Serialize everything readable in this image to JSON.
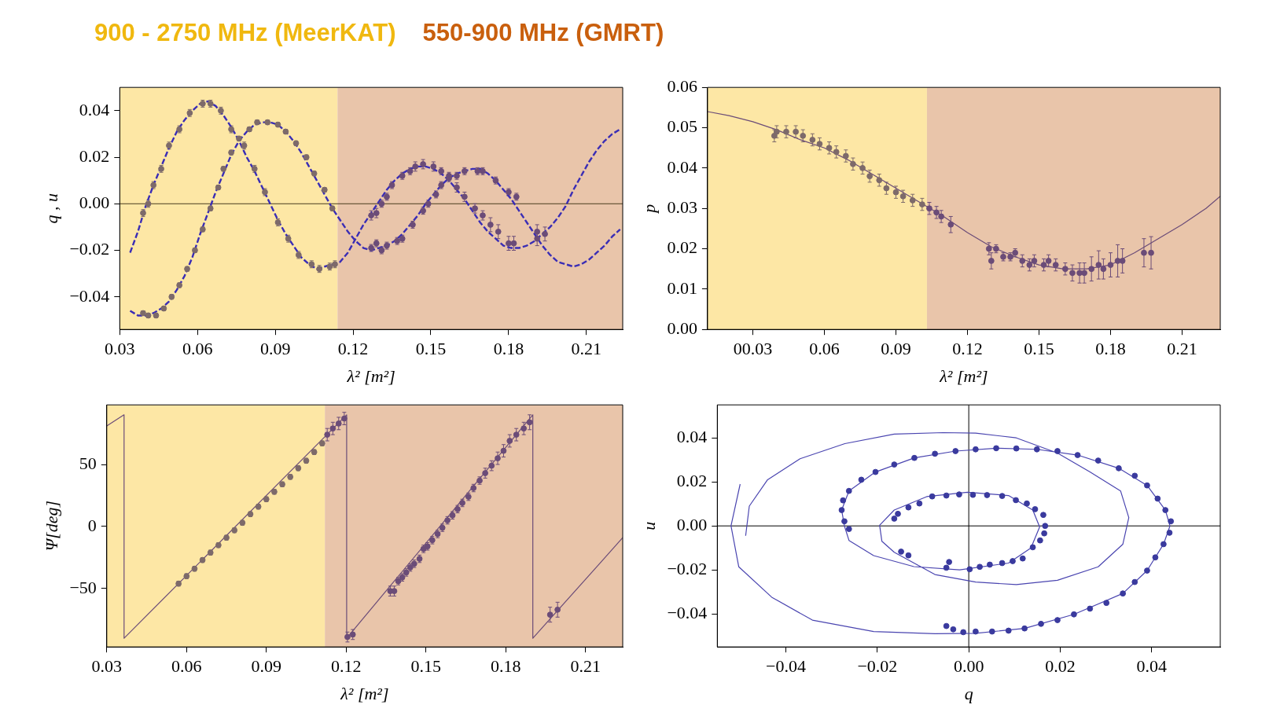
{
  "chart_data": [
    {
      "type": "scatter",
      "xlabel": "λ² [m²]",
      "ylabel": "q , u",
      "marker": "circle",
      "xlim": [
        0.03,
        0.224
      ],
      "ylim": [
        -0.054,
        0.05
      ],
      "xticks": [
        0.03,
        0.06,
        0.09,
        0.12,
        0.15,
        0.18,
        0.21
      ],
      "yticks": [
        {
          "value": -0.04,
          "label": "−0.04"
        },
        {
          "value": -0.02,
          "label": "−0.02"
        },
        {
          "value": 0,
          "label": "0.00"
        },
        {
          "value": 0.02,
          "label": "0.02"
        },
        {
          "value": 0.04,
          "label": "0.04"
        }
      ],
      "bands": [
        {
          "axis": "x",
          "from": 0.03,
          "to": 0.114,
          "label": "900 - 2750 MHz (MeerKAT)",
          "color": "#fde7a5"
        },
        {
          "axis": "x",
          "from": 0.114,
          "to": 0.224,
          "label": "550-900 MHz (GMRT)",
          "color": "#e9c5aa"
        }
      ],
      "ref_lines": [
        {
          "axis": "y",
          "value": 0,
          "color": "#4a3c20"
        }
      ],
      "series": [
        {
          "type": "line",
          "marker": "none",
          "line_style": "dashed",
          "color": "#3a2db5",
          "x": [
            0.034,
            0.037,
            0.04,
            0.043,
            0.046,
            0.049,
            0.052,
            0.055,
            0.058,
            0.061,
            0.064,
            0.067,
            0.07,
            0.073,
            0.076,
            0.079,
            0.082,
            0.085,
            0.088,
            0.091,
            0.094,
            0.097,
            0.1,
            0.103,
            0.106,
            0.109,
            0.112,
            0.115,
            0.118,
            0.121,
            0.124,
            0.127,
            0.13,
            0.133,
            0.136,
            0.139,
            0.142,
            0.145,
            0.148,
            0.151,
            0.154,
            0.157,
            0.16,
            0.163,
            0.166,
            0.169,
            0.172,
            0.175,
            0.178,
            0.181,
            0.184,
            0.187,
            0.19,
            0.193,
            0.196,
            0.199,
            0.202,
            0.205,
            0.208,
            0.211,
            0.214,
            0.217,
            0.22,
            0.223
          ],
          "values": [
            -0.021,
            -0.012,
            -0.001,
            0.008,
            0.016,
            0.024,
            0.031,
            0.036,
            0.04,
            0.043,
            0.044,
            0.042,
            0.038,
            0.033,
            0.027,
            0.02,
            0.014,
            0.007,
            0,
            -0.007,
            -0.013,
            -0.018,
            -0.023,
            -0.026,
            -0.028,
            -0.027,
            -0.026,
            -0.025,
            -0.021,
            -0.015,
            -0.009,
            -0.004,
            0.001,
            0.006,
            0.01,
            0.013,
            0.015,
            0.016,
            0.016,
            0.015,
            0.013,
            0.01,
            0.006,
            0.002,
            -0.003,
            -0.008,
            -0.012,
            -0.015,
            -0.018,
            -0.019,
            -0.019,
            -0.018,
            -0.016,
            -0.013,
            -0.01,
            -0.006,
            -0.001,
            0.006,
            0.012,
            0.018,
            0.023,
            0.027,
            0.03,
            0.032
          ]
        },
        {
          "type": "line",
          "marker": "none",
          "line_style": "dashed",
          "color": "#3a2db5",
          "x": [
            0.034,
            0.037,
            0.04,
            0.043,
            0.046,
            0.049,
            0.052,
            0.055,
            0.058,
            0.061,
            0.064,
            0.067,
            0.07,
            0.073,
            0.076,
            0.079,
            0.082,
            0.085,
            0.088,
            0.091,
            0.094,
            0.097,
            0.1,
            0.103,
            0.106,
            0.109,
            0.112,
            0.115,
            0.118,
            0.121,
            0.124,
            0.127,
            0.13,
            0.133,
            0.136,
            0.139,
            0.142,
            0.145,
            0.148,
            0.151,
            0.154,
            0.157,
            0.16,
            0.163,
            0.166,
            0.169,
            0.172,
            0.175,
            0.178,
            0.181,
            0.184,
            0.187,
            0.19,
            0.193,
            0.196,
            0.199,
            0.202,
            0.205,
            0.208,
            0.211,
            0.214,
            0.217,
            0.22,
            0.223
          ],
          "values": [
            -0.046,
            -0.048,
            -0.048,
            -0.047,
            -0.045,
            -0.042,
            -0.037,
            -0.031,
            -0.023,
            -0.013,
            -0.004,
            0.005,
            0.013,
            0.021,
            0.027,
            0.031,
            0.034,
            0.035,
            0.035,
            0.034,
            0.031,
            0.027,
            0.022,
            0.016,
            0.01,
            0.004,
            -0.002,
            -0.007,
            -0.012,
            -0.016,
            -0.019,
            -0.02,
            -0.019,
            -0.018,
            -0.016,
            -0.013,
            -0.009,
            -0.005,
            0,
            0.004,
            0.008,
            0.011,
            0.013,
            0.014,
            0.015,
            0.015,
            0.013,
            0.01,
            0.006,
            0.002,
            -0.003,
            -0.008,
            -0.013,
            -0.018,
            -0.022,
            -0.025,
            -0.026,
            -0.027,
            -0.026,
            -0.024,
            -0.021,
            -0.018,
            -0.014,
            -0.011
          ]
        },
        {
          "color": "#7d6a6a",
          "x": [
            0.039,
            0.041,
            0.043,
            0.046,
            0.049,
            0.053,
            0.057,
            0.062,
            0.065,
            0.069,
            0.073,
            0.078,
            0.082,
            0.086,
            0.091,
            0.095,
            0.099,
            0.104,
            0.107,
            0.111,
            0.113
          ],
          "values": [
            -0.004,
            0,
            0.008,
            0.015,
            0.025,
            0.032,
            0.039,
            0.043,
            0.043,
            0.04,
            0.032,
            0.025,
            0.015,
            0.005,
            -0.008,
            -0.015,
            -0.022,
            -0.026,
            -0.028,
            -0.027,
            -0.026
          ],
          "errors": [
            0.0015,
            0.0015,
            0.0015,
            0.0015,
            0.0015,
            0.0015,
            0.0015,
            0.0015,
            0.0015,
            0.0015,
            0.0015,
            0.0015,
            0.0015,
            0.0015,
            0.0015,
            0.0015,
            0.0015,
            0.0015,
            0.0015,
            0.0015,
            0.0015
          ]
        },
        {
          "color": "#6b4c78",
          "x": [
            0.127,
            0.129,
            0.131,
            0.133,
            0.135,
            0.139,
            0.142,
            0.144,
            0.147,
            0.151,
            0.154,
            0.157,
            0.16,
            0.163,
            0.167,
            0.17,
            0.173,
            0.176,
            0.18,
            0.182,
            0.191
          ],
          "values": [
            -0.005,
            -0.004,
            0,
            0.003,
            0.008,
            0.012,
            0.014,
            0.016,
            0.017,
            0.016,
            0.014,
            0.012,
            0.007,
            0.003,
            -0.002,
            -0.005,
            -0.009,
            -0.012,
            -0.017,
            -0.017,
            -0.015
          ],
          "errors": [
            0.002,
            0.002,
            0.0015,
            0.0015,
            0.0015,
            0.0015,
            0.0015,
            0.002,
            0.002,
            0.002,
            0.0015,
            0.0015,
            0.002,
            0.002,
            0.002,
            0.002,
            0.003,
            0.003,
            0.003,
            0.003,
            0.003
          ]
        },
        {
          "color": "#7d6a6a",
          "x": [
            0.039,
            0.041,
            0.044,
            0.047,
            0.05,
            0.053,
            0.056,
            0.059,
            0.062,
            0.065,
            0.068,
            0.07,
            0.073,
            0.076,
            0.08,
            0.083,
            0.087,
            0.091,
            0.094,
            0.098,
            0.102,
            0.105,
            0.109,
            0.112
          ],
          "values": [
            -0.047,
            -0.048,
            -0.048,
            -0.045,
            -0.04,
            -0.035,
            -0.028,
            -0.02,
            -0.011,
            -0.002,
            0.007,
            0.015,
            0.022,
            0.028,
            0.032,
            0.035,
            0.035,
            0.034,
            0.031,
            0.026,
            0.02,
            0.013,
            0.006,
            -0.002
          ],
          "errors": [
            0.001,
            0.001,
            0.001,
            0.001,
            0.001,
            0.001,
            0.001,
            0.001,
            0.001,
            0.001,
            0.001,
            0.001,
            0.001,
            0.001,
            0.001,
            0.001,
            0.001,
            0.001,
            0.001,
            0.001,
            0.001,
            0.001,
            0.001,
            0.001
          ]
        },
        {
          "color": "#6b4c78",
          "x": [
            0.127,
            0.129,
            0.131,
            0.133,
            0.137,
            0.139,
            0.143,
            0.147,
            0.149,
            0.152,
            0.154,
            0.157,
            0.16,
            0.163,
            0.168,
            0.17,
            0.175,
            0.18,
            0.183,
            0.191,
            0.194
          ],
          "values": [
            -0.019,
            -0.017,
            -0.02,
            -0.018,
            -0.016,
            -0.015,
            -0.009,
            -0.003,
            0,
            0.004,
            0.008,
            0.011,
            0.012,
            0.014,
            0.014,
            0.014,
            0.01,
            0.005,
            0.003,
            -0.012,
            -0.013
          ],
          "errors": [
            0.0015,
            0.0015,
            0.0015,
            0.0015,
            0.0015,
            0.0015,
            0.0015,
            0.0015,
            0.0015,
            0.0015,
            0.0015,
            0.0015,
            0.0015,
            0.0015,
            0.0015,
            0.0015,
            0.0015,
            0.0015,
            0.0015,
            0.003,
            0.003
          ]
        }
      ]
    },
    {
      "type": "scatter",
      "xlabel": "λ² [m²]",
      "ylabel": "p",
      "marker": "circle",
      "xlim": [
        0.011,
        0.226
      ],
      "ylim": [
        0,
        0.06
      ],
      "xticks": [
        {
          "value": 0.03,
          "label": "00.03"
        },
        0.06,
        0.09,
        0.12,
        0.15,
        0.18,
        0.21
      ],
      "yticks": [
        {
          "value": 0,
          "label": "0.00"
        },
        0.01,
        0.02,
        0.03,
        0.04,
        0.05,
        0.06
      ],
      "bands": [
        {
          "axis": "x",
          "from": 0.011,
          "to": 0.103,
          "color": "#fde7a5"
        },
        {
          "axis": "x",
          "from": 0.103,
          "to": 0.226,
          "color": "#e9c5aa"
        }
      ],
      "series": [
        {
          "type": "line",
          "marker": "none",
          "color": "#6b4c78",
          "x": [
            0.011,
            0.02,
            0.03,
            0.04,
            0.05,
            0.06,
            0.07,
            0.08,
            0.09,
            0.1,
            0.11,
            0.12,
            0.13,
            0.14,
            0.15,
            0.16,
            0.17,
            0.18,
            0.19,
            0.2,
            0.21,
            0.22,
            0.226
          ],
          "values": [
            0.054,
            0.053,
            0.0515,
            0.0495,
            0.047,
            0.045,
            0.042,
            0.0385,
            0.035,
            0.0315,
            0.028,
            0.024,
            0.0205,
            0.018,
            0.016,
            0.015,
            0.015,
            0.016,
            0.019,
            0.0225,
            0.026,
            0.03,
            0.033
          ]
        },
        {
          "color": "#7d6a6a",
          "x": [
            0.039,
            0.04,
            0.044,
            0.048,
            0.051,
            0.055,
            0.058,
            0.062,
            0.065,
            0.069,
            0.072,
            0.076,
            0.079,
            0.083,
            0.086,
            0.09,
            0.093,
            0.097,
            0.101
          ],
          "values": [
            0.048,
            0.049,
            0.049,
            0.049,
            0.048,
            0.047,
            0.046,
            0.045,
            0.044,
            0.043,
            0.041,
            0.04,
            0.038,
            0.037,
            0.035,
            0.034,
            0.033,
            0.032,
            0.031
          ],
          "errors": [
            0.0015,
            0.0015,
            0.0015,
            0.0015,
            0.0015,
            0.0015,
            0.0015,
            0.0015,
            0.0015,
            0.0015,
            0.0015,
            0.0015,
            0.0015,
            0.0015,
            0.0015,
            0.0015,
            0.0015,
            0.0015,
            0.0015
          ]
        },
        {
          "color": "#6b4c78",
          "x": [
            0.104,
            0.107,
            0.109,
            0.113,
            0.129,
            0.13,
            0.132,
            0.135,
            0.138,
            0.14,
            0.143,
            0.146,
            0.148,
            0.152,
            0.154,
            0.157,
            0.161,
            0.164,
            0.167,
            0.169,
            0.172,
            0.175,
            0.177,
            0.18,
            0.183,
            0.185,
            0.194,
            0.197
          ],
          "values": [
            0.03,
            0.029,
            0.028,
            0.026,
            0.02,
            0.017,
            0.02,
            0.018,
            0.018,
            0.019,
            0.017,
            0.016,
            0.017,
            0.016,
            0.017,
            0.016,
            0.015,
            0.014,
            0.014,
            0.014,
            0.015,
            0.016,
            0.015,
            0.016,
            0.017,
            0.017,
            0.019,
            0.019
          ],
          "errors": [
            0.0015,
            0.0015,
            0.0015,
            0.002,
            0.0015,
            0.002,
            0.001,
            0.001,
            0.001,
            0.001,
            0.0015,
            0.0015,
            0.0015,
            0.0015,
            0.0015,
            0.0015,
            0.0015,
            0.002,
            0.0025,
            0.0025,
            0.003,
            0.0035,
            0.0025,
            0.003,
            0.004,
            0.003,
            0.0035,
            0.004
          ]
        }
      ]
    },
    {
      "type": "scatter",
      "xlabel": "λ² [m²]",
      "ylabel": "Ψ[deg]",
      "marker": "circle",
      "xlim": [
        0.03,
        0.224
      ],
      "ylim": [
        -97,
        98
      ],
      "xticks": [
        0.03,
        0.06,
        0.09,
        0.12,
        0.15,
        0.18,
        0.21
      ],
      "yticks": [
        {
          "value": -50,
          "label": "−50"
        },
        0,
        50
      ],
      "bands": [
        {
          "axis": "x",
          "from": 0.03,
          "to": 0.112,
          "color": "#fde7a5"
        },
        {
          "axis": "x",
          "from": 0.112,
          "to": 0.224,
          "color": "#e9c5aa"
        }
      ],
      "series": [
        {
          "type": "line",
          "marker": "none",
          "color": "#6b4c78",
          "x": [
            0.03,
            0.0365,
            0.0365,
            0.1202,
            0.1202,
            0.1902,
            0.1902,
            0.224
          ],
          "values": [
            81,
            90,
            -90,
            90,
            -90,
            90,
            -90,
            -9
          ]
        },
        {
          "color": "#7d6a6a",
          "x": [
            0.057,
            0.06,
            0.063,
            0.066,
            0.069,
            0.072,
            0.075,
            0.078,
            0.081,
            0.084,
            0.087,
            0.09,
            0.093,
            0.096,
            0.099,
            0.102,
            0.105,
            0.108,
            0.111
          ],
          "values": [
            -46,
            -40,
            -34,
            -27,
            -21,
            -15,
            -9,
            -3,
            3,
            10,
            16,
            22,
            28,
            34,
            40,
            47,
            53,
            60,
            67
          ],
          "errors": [
            2,
            2,
            2,
            2,
            2,
            2,
            2,
            2,
            2,
            2,
            2,
            2,
            2,
            2,
            2,
            2,
            2,
            2,
            2
          ]
        },
        {
          "color": "#6b4c78",
          "x": [
            0.1129,
            0.115,
            0.1172,
            0.1193,
            0.1205,
            0.1225,
            0.1366,
            0.1381,
            0.1396,
            0.1411,
            0.1426,
            0.1441,
            0.1456,
            0.1476,
            0.1491,
            0.1506,
            0.1524,
            0.1544,
            0.1562,
            0.1581,
            0.16,
            0.1619,
            0.1637,
            0.166,
            0.1679,
            0.1702,
            0.1723,
            0.1747,
            0.177,
            0.1792,
            0.1815,
            0.184,
            0.1868,
            0.189,
            0.1967,
            0.1995
          ],
          "values": [
            74,
            79,
            83,
            87,
            -89,
            -87,
            -52,
            -52,
            -44,
            -41,
            -37,
            -33,
            -30,
            -26,
            -18,
            -16,
            -11,
            -6,
            -1,
            5,
            9,
            14,
            19,
            24,
            31,
            37,
            43,
            49,
            55,
            61,
            69,
            74,
            79,
            84,
            -71,
            -67
          ],
          "errors": [
            5,
            5,
            5,
            5,
            4,
            4,
            4,
            4,
            3,
            3,
            3,
            3,
            3,
            3,
            3,
            3,
            3,
            3,
            3,
            3,
            3,
            3,
            3,
            3,
            3,
            3,
            4,
            4,
            5,
            5,
            5,
            5,
            5,
            6,
            6,
            6
          ]
        }
      ]
    },
    {
      "type": "scatter",
      "xlabel": "q",
      "ylabel": "u",
      "marker": "circle",
      "xlim": [
        -0.055,
        0.055
      ],
      "ylim": [
        -0.055,
        0.055
      ],
      "xticks": [
        {
          "value": -0.04,
          "label": "−0.04"
        },
        {
          "value": -0.02,
          "label": "−0.02"
        },
        {
          "value": 0,
          "label": "0.00"
        },
        0.02,
        0.04
      ],
      "yticks": [
        {
          "value": -0.04,
          "label": "−0.04"
        },
        {
          "value": -0.02,
          "label": "−0.02"
        },
        {
          "value": 0,
          "label": "0.00"
        },
        0.02,
        0.04
      ],
      "ref_lines": [
        {
          "axis": "x",
          "value": 0,
          "color": "#000000"
        },
        {
          "axis": "y",
          "value": 0,
          "color": "#000000"
        }
      ],
      "series": [
        {
          "type": "line",
          "marker": "none",
          "color": "#4a45b0",
          "x": [
            -0.05,
            -0.052,
            -0.0503,
            -0.0431,
            -0.0342,
            -0.0208,
            -0.0074,
            0.0015,
            0.0122,
            0.023,
            0.0337,
            0.039,
            0.0426,
            0.044,
            0.043,
            0.039,
            0.0328,
            0.0238,
            0.0149,
            0.006,
            -0.0029,
            -0.0119,
            -0.0204,
            -0.0262,
            -0.0278,
            -0.0272,
            -0.0262,
            -0.0208,
            -0.012,
            -0.002,
            0.0087,
            0.0136,
            0.0155,
            0.014,
            0.0087,
            -0.0003,
            -0.0092,
            -0.0163,
            -0.0195,
            -0.019,
            -0.0163,
            -0.0074,
            0.0015,
            0.0104,
            0.0194,
            0.0283,
            0.0337,
            0.035,
            0.0332,
            0.0265,
            0.0194,
            0.0104,
            0.0015,
            -0.0056,
            -0.0163,
            -0.0271,
            -0.0369,
            -0.044,
            -0.048,
            -0.0488
          ],
          "values": [
            0.019,
            0,
            -0.0186,
            -0.0324,
            -0.0428,
            -0.048,
            -0.049,
            -0.0488,
            -0.0466,
            -0.0402,
            -0.0307,
            -0.0203,
            -0.0083,
            0,
            0.0072,
            0.0184,
            0.0262,
            0.0322,
            0.0348,
            0.0353,
            0.034,
            0.0309,
            0.0245,
            0.0159,
            0.0072,
            0,
            -0.0066,
            -0.0135,
            -0.0185,
            -0.02,
            -0.0169,
            -0.01,
            -0.0005,
            0.0072,
            0.0138,
            0.0153,
            0.0133,
            0.0072,
            0.0003,
            -0.007,
            -0.012,
            -0.0221,
            -0.0255,
            -0.0267,
            -0.0247,
            -0.0186,
            -0.0083,
            0.0038,
            0.0159,
            0.0245,
            0.0331,
            0.04,
            0.0422,
            0.0424,
            0.0417,
            0.0374,
            0.0305,
            0.021,
            0.009,
            -0.0045
          ]
        },
        {
          "color": "#3a3a9e",
          "x": [
            -0.0049,
            -0.0034,
            -0.0012,
            0.0015,
            0.0051,
            0.0087,
            0.0122,
            0.0158,
            0.0194,
            0.023,
            0.0265,
            0.0301,
            0.0337,
            0.0363,
            0.039,
            0.0408,
            0.0426,
            0.0439,
            0.0442,
            0.043,
            0.0413,
            0.039,
            0.0363,
            0.0328,
            0.0283,
            0.0238,
            0.0194,
            0.0149,
            0.0104,
            0.006,
            0.0015,
            -0.0029,
            -0.0074,
            -0.0119,
            -0.0163,
            -0.0204,
            -0.0235,
            -0.0262,
            -0.0275,
            -0.0278,
            -0.0272,
            -0.0262,
            -0.0163,
            -0.0155,
            -0.0132,
            -0.0108,
            -0.008,
            -0.0049,
            -0.0021,
            0.0009,
            0.004,
            0.0073,
            0.0103,
            0.0127,
            0.0145,
            0.0163,
            0.0167,
            0.0165,
            0.0156,
            0.014,
            0.0118,
            0.0096,
            0.0073,
            0.0046,
            0.0024,
            0.0002,
            -0.0043,
            -0.0049,
            -0.0132,
            -0.0148
          ],
          "values": [
            -0.0455,
            -0.047,
            -0.0483,
            -0.048,
            -0.048,
            -0.0476,
            -0.0466,
            -0.0445,
            -0.0428,
            -0.0402,
            -0.0376,
            -0.035,
            -0.0307,
            -0.0255,
            -0.0203,
            -0.0143,
            -0.0083,
            -0.0031,
            0.0021,
            0.0072,
            0.0124,
            0.0184,
            0.0228,
            0.0262,
            0.0297,
            0.0322,
            0.034,
            0.0348,
            0.0352,
            0.0353,
            0.0348,
            0.034,
            0.0328,
            0.0309,
            0.0279,
            0.0245,
            0.021,
            0.0159,
            0.0116,
            0.0072,
            0.0021,
            -0.0014,
            0.0033,
            0.0055,
            0.0084,
            0.0102,
            0.0134,
            0.0138,
            0.0143,
            0.0141,
            0.014,
            0.0136,
            0.0117,
            0.0102,
            0.0076,
            0.005,
            0,
            -0.0034,
            -0.0066,
            -0.0097,
            -0.0148,
            -0.016,
            -0.0169,
            -0.0176,
            -0.0186,
            -0.0197,
            -0.0164,
            -0.019,
            -0.0134,
            -0.0117
          ]
        }
      ]
    }
  ]
}
